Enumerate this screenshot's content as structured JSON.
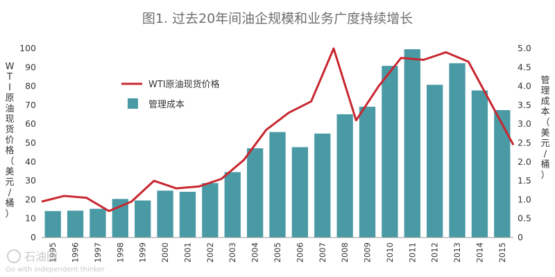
{
  "chart_data": {
    "type": "bar+line",
    "title": "图1. 过去20年间油企规模和业务广度持续增长",
    "categories": [
      "1995",
      "1996",
      "1997",
      "1998",
      "1999",
      "2000",
      "2001",
      "2002",
      "2003",
      "2004",
      "2005",
      "2006",
      "2007",
      "2008",
      "2009",
      "2010",
      "2011",
      "2012",
      "2013",
      "2014",
      "2015"
    ],
    "bar_series": {
      "name": "管理成本",
      "axis": "right",
      "color": "#4a9aa5",
      "values": [
        0.7,
        0.71,
        0.76,
        1.02,
        0.98,
        1.24,
        1.21,
        1.44,
        1.73,
        2.36,
        2.79,
        2.39,
        2.75,
        3.26,
        3.46,
        4.54,
        4.98,
        4.04,
        4.61,
        3.89,
        3.37
      ]
    },
    "line_series": {
      "name": "WTI原油现货价格",
      "axis": "left",
      "color": "#c8262f",
      "values": [
        19,
        22,
        21,
        14,
        19,
        30,
        26,
        27,
        31,
        41,
        57,
        66,
        72,
        100,
        62,
        80,
        95,
        94,
        98,
        93,
        49
      ]
    },
    "y_left": {
      "label": "WTI原油现货价格（美元/桶）",
      "min": 0,
      "max": 100,
      "ticks": [
        "0",
        "10",
        "20",
        "30",
        "40",
        "50",
        "60",
        "70",
        "80",
        "90",
        "100"
      ]
    },
    "y_right": {
      "label": "管理成本（美元/桶）",
      "min": 0,
      "max": 5,
      "ticks": [
        "0",
        "0.5",
        "1.0",
        "1.5",
        "2.0",
        "2.5",
        "3.0",
        "3.5",
        "4.0",
        "4.5",
        "5.0"
      ]
    },
    "legend_position": "upper-left",
    "grid": false
  },
  "watermark": {
    "brand": "石油圈",
    "tagline": "Go with independent thinker"
  }
}
